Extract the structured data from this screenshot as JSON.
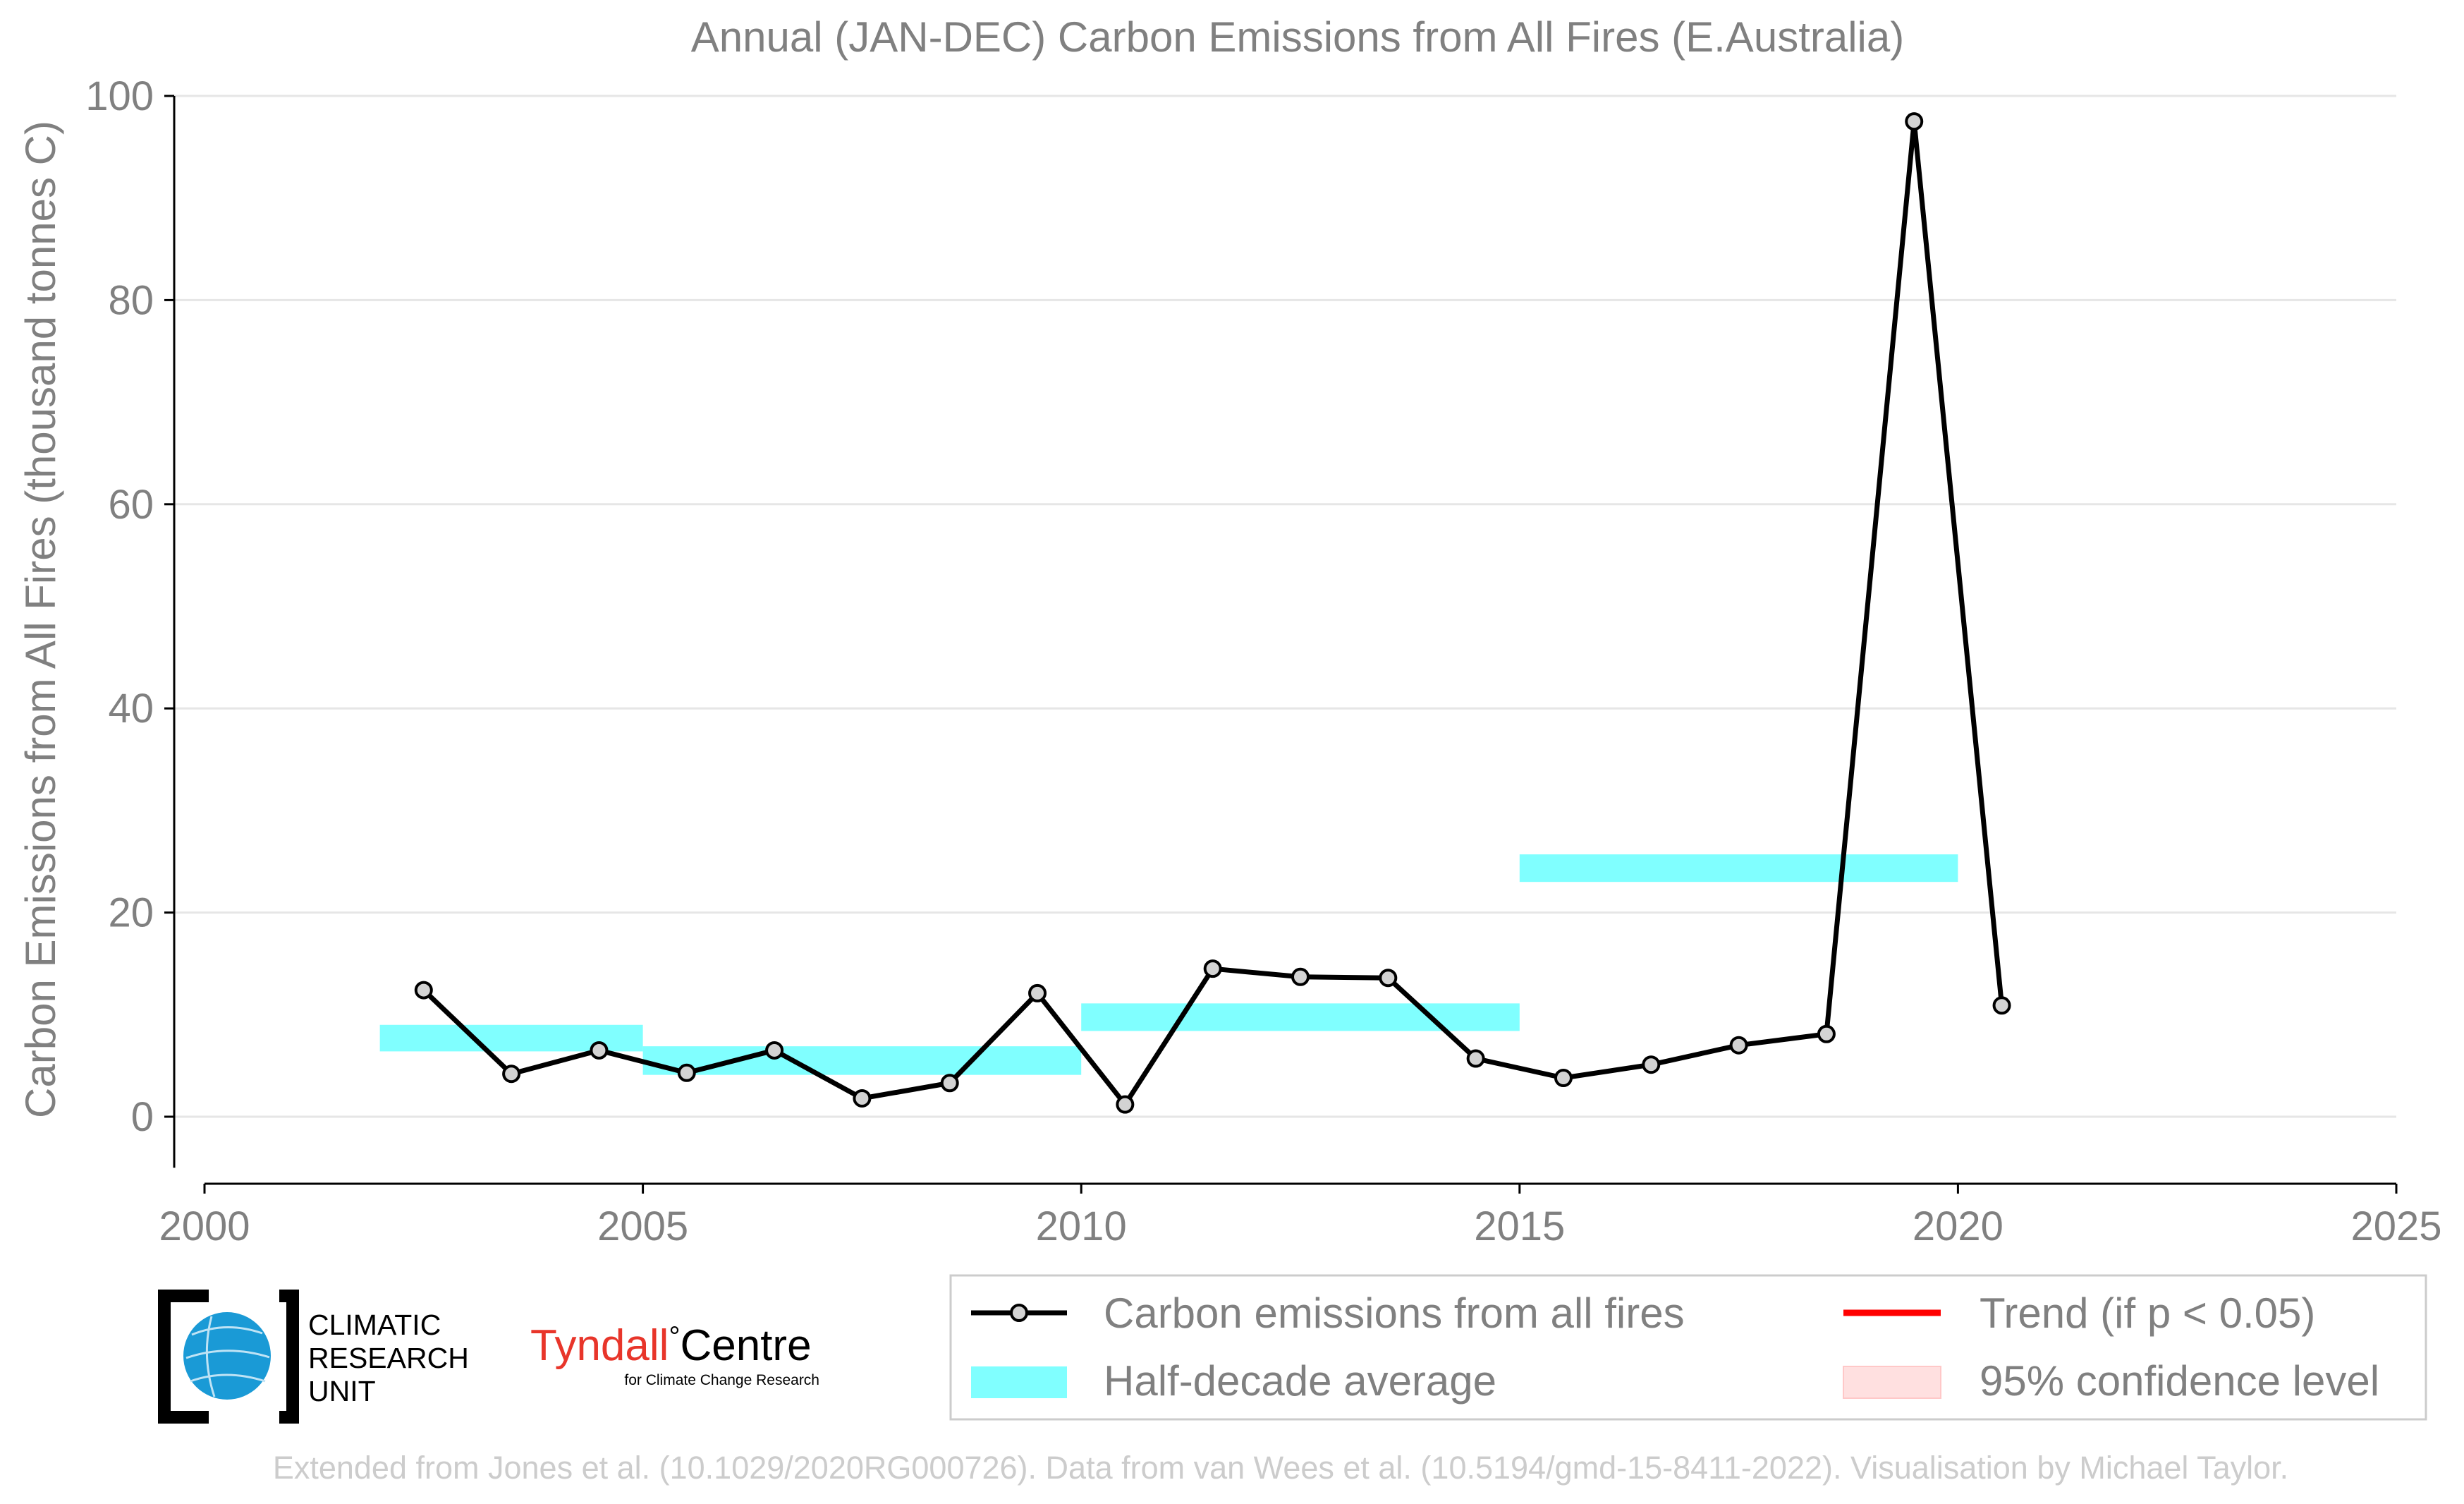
{
  "chart_data": {
    "type": "line",
    "title": "Annual (JAN-DEC) Carbon Emissions from All Fires (E.Australia)",
    "xlabel": "",
    "ylabel": "Carbon Emissions from All Fires (thousand tonnes C)",
    "xlim": [
      2000,
      2025
    ],
    "ylim": [
      -5,
      100
    ],
    "x_ticks": [
      2000,
      2005,
      2010,
      2015,
      2020,
      2025
    ],
    "y_ticks": [
      0,
      20,
      40,
      60,
      80,
      100
    ],
    "grid": "horizontal",
    "series": [
      {
        "name": "Carbon emissions from all fires",
        "type": "line-markers",
        "color": "#000000",
        "marker_fill": "#d3d3d3",
        "x": [
          2002.5,
          2003.5,
          2004.5,
          2005.5,
          2006.5,
          2007.5,
          2008.5,
          2009.5,
          2010.5,
          2011.5,
          2012.5,
          2013.5,
          2014.5,
          2015.5,
          2016.5,
          2017.5,
          2018.5,
          2019.5,
          2020.5
        ],
        "values": [
          12.4,
          4.2,
          6.5,
          4.3,
          6.5,
          1.8,
          3.3,
          12.1,
          1.2,
          14.5,
          13.7,
          13.6,
          5.7,
          3.8,
          5.1,
          7.0,
          8.1,
          97.5,
          10.9
        ]
      },
      {
        "name": "Half-decade average",
        "type": "bands",
        "color": "#80ffff",
        "bands": [
          {
            "x_start": 2002,
            "x_end": 2005,
            "y_low": 6.4,
            "y_high": 9.0
          },
          {
            "x_start": 2005,
            "x_end": 2010,
            "y_low": 4.1,
            "y_high": 6.9
          },
          {
            "x_start": 2010,
            "x_end": 2015,
            "y_low": 8.4,
            "y_high": 11.1
          },
          {
            "x_start": 2015,
            "x_end": 2020,
            "y_low": 23.0,
            "y_high": 25.7
          }
        ]
      }
    ],
    "legend": {
      "placement": "bottom-right",
      "items": [
        {
          "label": "Carbon emissions from all fires",
          "kind": "line-marker",
          "color": "#000000"
        },
        {
          "label": "Trend (if p < 0.05)",
          "kind": "line",
          "color": "#ff0000"
        },
        {
          "label": "Half-decade average",
          "kind": "patch",
          "color": "#80ffff"
        },
        {
          "label": "95% confidence level",
          "kind": "patch",
          "color": "#ffe0e0"
        }
      ]
    },
    "footer": "Extended from Jones et al. (10.1029/2020RG000726). Data from van Wees et al. (10.5194/gmd-15-8411-2022). Visualisation by Michael Taylor."
  },
  "logos": {
    "cru": {
      "line1": "CLIMATIC",
      "line2": "RESEARCH",
      "line3": "UNIT",
      "globe_color": "#1a9ad6"
    },
    "tyndall": {
      "name_red": "Tyndall",
      "degree": "°",
      "name_black": "Centre",
      "subtitle": "for Climate Change Research",
      "red_color": "#e8352a"
    }
  },
  "colors": {
    "text_gray": "#808080",
    "grid": "#e6e6e6",
    "footer": "#cccccc",
    "axis": "#000000"
  }
}
